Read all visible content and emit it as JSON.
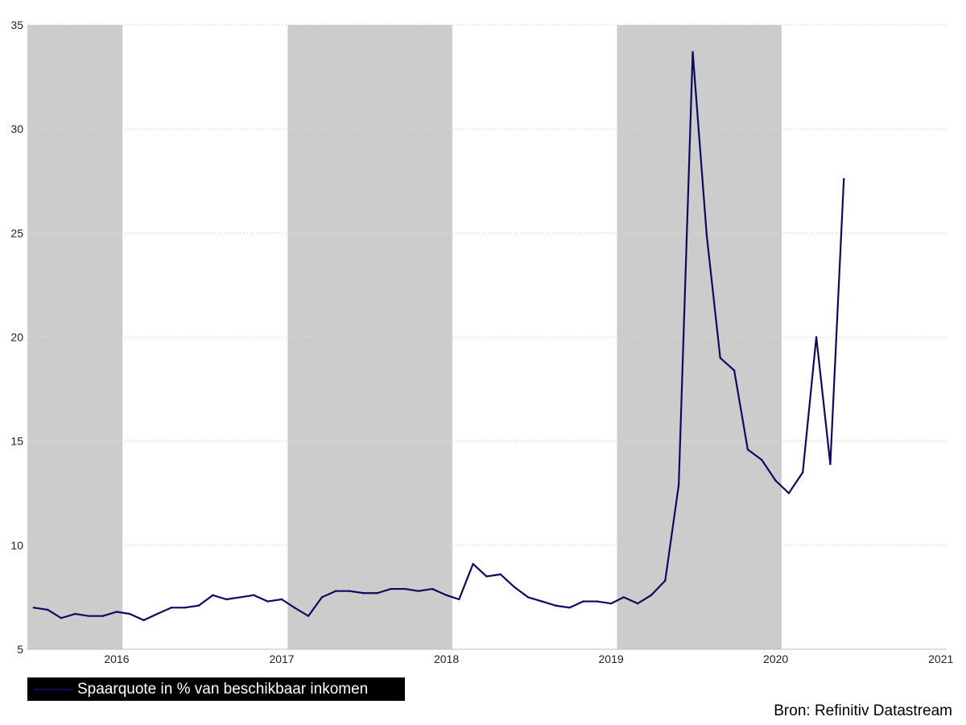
{
  "chart_data": {
    "type": "line",
    "ylim": [
      5,
      35
    ],
    "yticks": [
      5,
      10,
      15,
      20,
      25,
      30,
      35
    ],
    "xlim": [
      "2015-08-01",
      "2021-02-28"
    ],
    "xtick_labels": [
      {
        "label": "2016",
        "date": "2016-02-15"
      },
      {
        "label": "2017",
        "date": "2017-02-15"
      },
      {
        "label": "2018",
        "date": "2018-02-15"
      },
      {
        "label": "2019",
        "date": "2019-02-15"
      },
      {
        "label": "2020",
        "date": "2020-02-15"
      },
      {
        "label": "2021",
        "date": "2021-02-15"
      }
    ],
    "shaded_periods": [
      [
        "2015-08-01",
        "2016-02-28"
      ],
      [
        "2017-02-28",
        "2018-02-28"
      ],
      [
        "2019-02-28",
        "2020-02-28"
      ]
    ],
    "grid": "horizontal",
    "legend_position": "bottom-left",
    "series": [
      {
        "name": "Spaarquote in % van beschikbaar inkomen",
        "color": "#0b0b5e",
        "points": [
          [
            "2015-08",
            7.0
          ],
          [
            "2015-09",
            6.9
          ],
          [
            "2015-10",
            6.5
          ],
          [
            "2015-11",
            6.7
          ],
          [
            "2015-12",
            6.6
          ],
          [
            "2016-01",
            6.6
          ],
          [
            "2016-02",
            6.8
          ],
          [
            "2016-03",
            6.7
          ],
          [
            "2016-04",
            6.4
          ],
          [
            "2016-05",
            6.7
          ],
          [
            "2016-06",
            7.0
          ],
          [
            "2016-07",
            7.0
          ],
          [
            "2016-08",
            7.1
          ],
          [
            "2016-09",
            7.6
          ],
          [
            "2016-10",
            7.4
          ],
          [
            "2016-11",
            7.5
          ],
          [
            "2016-12",
            7.6
          ],
          [
            "2017-01",
            7.3
          ],
          [
            "2017-02",
            7.4
          ],
          [
            "2017-03",
            7.0
          ],
          [
            "2017-04",
            6.6
          ],
          [
            "2017-05",
            7.5
          ],
          [
            "2017-06",
            7.8
          ],
          [
            "2017-07",
            7.8
          ],
          [
            "2017-08",
            7.7
          ],
          [
            "2017-09",
            7.7
          ],
          [
            "2017-10",
            7.9
          ],
          [
            "2017-11",
            7.9
          ],
          [
            "2017-12",
            7.8
          ],
          [
            "2018-01",
            7.9
          ],
          [
            "2018-02",
            7.6
          ],
          [
            "2018-03",
            7.4
          ],
          [
            "2018-04",
            9.1
          ],
          [
            "2018-05",
            8.5
          ],
          [
            "2018-06",
            8.6
          ],
          [
            "2018-07",
            8.0
          ],
          [
            "2018-08",
            7.5
          ],
          [
            "2018-09",
            7.3
          ],
          [
            "2018-10",
            7.1
          ],
          [
            "2018-11",
            7.0
          ],
          [
            "2018-12",
            7.3
          ],
          [
            "2019-01",
            7.3
          ],
          [
            "2019-02",
            7.2
          ],
          [
            "2019-03",
            7.5
          ],
          [
            "2019-04",
            7.2
          ],
          [
            "2019-05",
            7.6
          ],
          [
            "2019-06",
            8.3
          ],
          [
            "2019-07",
            12.9
          ],
          [
            "2019-08",
            33.7
          ],
          [
            "2019-09",
            24.9
          ],
          [
            "2019-10",
            19.0
          ],
          [
            "2019-11",
            18.4
          ],
          [
            "2019-12",
            14.6
          ],
          [
            "2020-01",
            14.1
          ],
          [
            "2020-02",
            13.1
          ],
          [
            "2020-03",
            12.5
          ],
          [
            "2020-04",
            13.5
          ],
          [
            "2020-05",
            20.0
          ],
          [
            "2020-06",
            13.9
          ],
          [
            "2020-07",
            27.6
          ]
        ]
      }
    ]
  },
  "source": "Bron: Refinitiv Datastream"
}
